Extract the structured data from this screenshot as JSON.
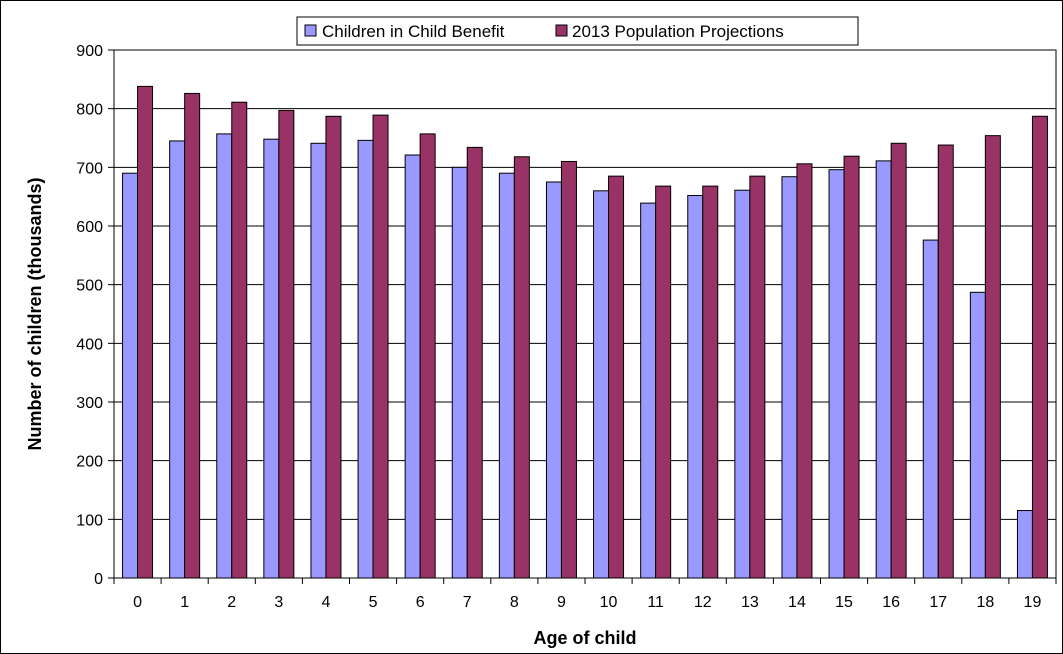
{
  "chart_data": {
    "type": "bar",
    "title": "",
    "xlabel": "Age of child",
    "ylabel": "Number of children (thousands)",
    "categories": [
      "0",
      "1",
      "2",
      "3",
      "4",
      "5",
      "6",
      "7",
      "8",
      "9",
      "10",
      "11",
      "12",
      "13",
      "14",
      "15",
      "16",
      "17",
      "18",
      "19"
    ],
    "series": [
      {
        "name": "Children in Child Benefit",
        "color": "#9999ff",
        "values": [
          690,
          745,
          757,
          748,
          741,
          746,
          721,
          700,
          690,
          675,
          660,
          639,
          652,
          661,
          684,
          696,
          711,
          576,
          487,
          115
        ]
      },
      {
        "name": "2013 Population Projections",
        "color": "#993366",
        "values": [
          838,
          826,
          811,
          797,
          787,
          789,
          757,
          734,
          718,
          710,
          685,
          668,
          668,
          685,
          706,
          719,
          741,
          738,
          754,
          787
        ]
      }
    ],
    "ylim": [
      0,
      900
    ],
    "yticks": [
      0,
      100,
      200,
      300,
      400,
      500,
      600,
      700,
      800,
      900
    ],
    "grid": "horizontal",
    "legend_position": "top-center"
  }
}
